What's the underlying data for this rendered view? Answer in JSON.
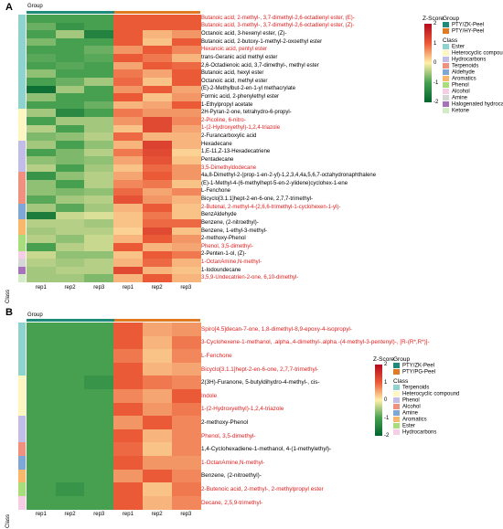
{
  "panelA": {
    "label": "A",
    "group_title": "Group",
    "class_axis": "Class",
    "columns": [
      "rep1",
      "rep2",
      "rep3",
      "rep1",
      "rep2",
      "rep3"
    ],
    "rows": [
      {
        "name": "Butanoic acid, 2-methyl-, 3,7-dimethyl-2,6-octadienyl ester, (E)-",
        "red": true,
        "cls": "Ester",
        "v": [
          -1,
          -1,
          -1,
          1,
          1,
          1
        ]
      },
      {
        "name": "Butanoic acid, 3-methyl-, 3,7-dimethyl-2,6-octadienyl ester, (Z)-",
        "red": true,
        "cls": "Ester",
        "v": [
          -0.8,
          -1.2,
          -1,
          1,
          1,
          1
        ]
      },
      {
        "name": "Octanoic acid, 3-hexenyl ester, (Z)-",
        "red": false,
        "cls": "Ester",
        "v": [
          -1,
          -0.5,
          -1.5,
          1,
          0.4,
          0.6
        ]
      },
      {
        "name": "Butanoic acid, 2-butoxy-1-methyl-2-oxoethyl ester",
        "red": false,
        "cls": "Ester",
        "v": [
          -0.7,
          -1,
          -1,
          1,
          0.3,
          1
        ]
      },
      {
        "name": "Hexanoic acid, pentyl ester",
        "red": true,
        "cls": "Ester",
        "v": [
          -1,
          -1,
          -0.8,
          0.6,
          1,
          0.7
        ]
      },
      {
        "name": "trans-Geranic acid methyl ester",
        "red": false,
        "cls": "Ester",
        "v": [
          -0.9,
          -1,
          -0.9,
          1,
          0.8,
          0.4
        ]
      },
      {
        "name": "2,6-Octadienoic acid, 3,7-dimethyl-, methyl ester",
        "red": false,
        "cls": "Ester",
        "v": [
          -1,
          -0.9,
          -1,
          0.5,
          1,
          0.9
        ]
      },
      {
        "name": "Butanoic acid, hexyl ester",
        "red": false,
        "cls": "Ester",
        "v": [
          -0.6,
          -1,
          -1,
          0.8,
          0.5,
          1
        ]
      },
      {
        "name": "Octanoic acid, methyl ester",
        "red": false,
        "cls": "Ester",
        "v": [
          -1,
          -0.8,
          -0.5,
          0.9,
          0.3,
          1
        ]
      },
      {
        "name": "(E)-2-Methylbut-2-en-1-yl methacrylate",
        "red": false,
        "cls": "Ester",
        "v": [
          -1.8,
          -0.5,
          -1,
          0.6,
          1,
          0.5
        ]
      },
      {
        "name": "Formic acid, 2-phenylethyl ester",
        "red": false,
        "cls": "Ester",
        "v": [
          -0.6,
          -1,
          -1,
          1,
          0.3,
          0.6
        ]
      },
      {
        "name": "1-Ethylpropyl acetate",
        "red": false,
        "cls": "Ester",
        "v": [
          -1,
          -1,
          -0.8,
          0.4,
          0.5,
          1
        ]
      },
      {
        "name": "2H-Pyran-2-one, tetrahydro-6-propyl-",
        "red": false,
        "cls": "Heterocyclic compound",
        "v": [
          -0.5,
          -1.4,
          -1,
          0.8,
          0.6,
          0.6
        ]
      },
      {
        "name": "2-Picoline, 6-nitro-",
        "red": true,
        "cls": "Heterocyclic compound",
        "v": [
          -1,
          -0.5,
          -0.5,
          0.6,
          1.2,
          0.7
        ]
      },
      {
        "name": "1-(2-Hydroxyethyl)-1,2,4-triazole",
        "red": true,
        "cls": "Heterocyclic compound",
        "v": [
          -0.4,
          -1,
          -0.5,
          0.3,
          1.2,
          0.5
        ]
      },
      {
        "name": "2-Furancarboxylic acid",
        "red": false,
        "cls": "Heterocyclic compound",
        "v": [
          -0.7,
          -0.6,
          -0.4,
          0.9,
          0.4,
          0.4
        ]
      },
      {
        "name": "Hexadecane",
        "red": false,
        "cls": "Hydrocarbons",
        "v": [
          -0.5,
          -1,
          -0.6,
          0.4,
          1.3,
          0.4
        ]
      },
      {
        "name": "1,E-11,Z-13-Hexadecatriene",
        "red": false,
        "cls": "Hydrocarbons",
        "v": [
          -1,
          -0.7,
          -0.4,
          0.8,
          1.2,
          0.2
        ]
      },
      {
        "name": "Pentadecane",
        "red": false,
        "cls": "Hydrocarbons",
        "v": [
          -0.6,
          -0.7,
          -0.6,
          0.5,
          1.1,
          0.3
        ]
      },
      {
        "name": "3,5-Dimethyldodecane",
        "red": true,
        "cls": "Hydrocarbons",
        "v": [
          -0.4,
          -1,
          -0.5,
          0.3,
          0.9,
          0.6
        ]
      },
      {
        "name": "4a,8-Dimethyl-2-(prop-1-en-2-yl)-1,2,3,4,4a,5,6,7-octahydronaphthalene",
        "red": false,
        "cls": "Terpenoids",
        "v": [
          -1.2,
          -0.6,
          -0.4,
          0.5,
          1,
          0.6
        ]
      },
      {
        "name": "(E)-1-Methyl-4-(6-methylhept-5-en-2-ylidene)cyclohex-1-ene",
        "red": false,
        "cls": "Terpenoids",
        "v": [
          -0.6,
          -1,
          -0.4,
          0.7,
          0.8,
          0.3
        ]
      },
      {
        "name": "L-Fenchone",
        "red": false,
        "cls": "Terpenoids",
        "v": [
          -0.6,
          -0.7,
          -0.6,
          0.9,
          0.5,
          0.7
        ]
      },
      {
        "name": "Bicyclo[3.1.1]hept-2-en-6-one, 2,7,7-trimethyl-",
        "red": false,
        "cls": "Terpenoids",
        "v": [
          -0.9,
          -0.5,
          -0.4,
          1.1,
          0.6,
          0.4
        ]
      },
      {
        "name": "2-Butenal, 2-methyl-4-(2,6,6-trimethyl-1-cyclohexen-1-yl)-",
        "red": true,
        "cls": "Aldehyde",
        "v": [
          -0.5,
          -0.9,
          -0.5,
          0.4,
          1,
          0.3
        ]
      },
      {
        "name": "BenzAldehyde",
        "red": false,
        "cls": "Aldehyde",
        "v": [
          -1.6,
          -0.3,
          -0.2,
          0.3,
          0.8,
          0.3
        ]
      },
      {
        "name": "Benzene, (2-nitroethyl)-",
        "red": false,
        "cls": "Aromatics",
        "v": [
          -0.4,
          -0.4,
          -0.5,
          0.3,
          0.9,
          0.9
        ]
      },
      {
        "name": "Benzene, 1-ethyl-3-methyl-",
        "red": false,
        "cls": "Aromatics",
        "v": [
          -0.5,
          -0.4,
          -0.4,
          0.2,
          1.2,
          0.3
        ]
      },
      {
        "name": "2-methoxy-Phenol",
        "red": false,
        "cls": "Phenol",
        "v": [
          -0.4,
          -0.6,
          -0.3,
          0.4,
          1,
          0.6
        ]
      },
      {
        "name": "Phenol, 3,5-dimethyl-",
        "red": true,
        "cls": "Phenol",
        "v": [
          -1,
          -0.4,
          -0.3,
          1,
          0.4,
          0.5
        ]
      },
      {
        "name": "2-Penten-1-ol, (Z)-",
        "red": false,
        "cls": "Alcohol",
        "v": [
          -0.3,
          -0.6,
          -0.6,
          0.3,
          1,
          0.8
        ]
      },
      {
        "name": "1-OctanAmine,N-methyl-",
        "red": true,
        "cls": "Amine",
        "v": [
          -0.4,
          -0.5,
          -0.4,
          0.4,
          0.9,
          0.4
        ]
      },
      {
        "name": "1-Iodoundecane",
        "red": false,
        "cls": "Halogenated hydrocarbons",
        "v": [
          -0.5,
          -0.4,
          -0.4,
          1.2,
          0.4,
          0.3
        ]
      },
      {
        "name": "3,5,9-Undecatrien-2-one, 6,10-dimethyl-",
        "red": true,
        "cls": "Ketone",
        "v": [
          -0.5,
          -0.5,
          -0.7,
          0.4,
          1,
          0.4
        ]
      }
    ],
    "legend": {
      "zscore_title": "Z-Score",
      "zticks": [
        "2",
        "1",
        "0",
        "-1",
        "-2"
      ],
      "group_title": "Group",
      "groups": [
        {
          "label": "PTY/ZK-Peel",
          "color": "#1e8a79"
        },
        {
          "label": "PTY/HY-Peel",
          "color": "#e07b24"
        }
      ],
      "class_title": "Class",
      "classes": [
        {
          "label": "Ester",
          "color": "#8fd3cf"
        },
        {
          "label": "Heterocyclic compound",
          "color": "#fdf6c0"
        },
        {
          "label": "Hydrocarbons",
          "color": "#c2bde6"
        },
        {
          "label": "Terpenoids",
          "color": "#f0907f"
        },
        {
          "label": "Aldehyde",
          "color": "#7ea7d6"
        },
        {
          "label": "Aromatics",
          "color": "#f8b76a"
        },
        {
          "label": "Phenol",
          "color": "#a8dd7c"
        },
        {
          "label": "Alcohol",
          "color": "#f5cde4"
        },
        {
          "label": "Amine",
          "color": "#d6d6d6"
        },
        {
          "label": "Halogenated hydrocarbons",
          "color": "#a673b9"
        },
        {
          "label": "Ketone",
          "color": "#d4ecc6"
        }
      ]
    }
  },
  "panelB": {
    "label": "B",
    "group_title": "Group",
    "class_axis": "Class",
    "columns": [
      "rep1",
      "rep2",
      "rep3",
      "rep1",
      "rep2",
      "rep3"
    ],
    "rows": [
      {
        "name": "Spiro[4.5]decan-7-one, 1,8-dimethyl-8,9-epoxy-4-isopropyl-",
        "red": true,
        "cls": "Terpenoids",
        "v": [
          -1,
          -1,
          -1,
          1,
          0.5,
          0.6
        ]
      },
      {
        "name": "3-Cyclohexene-1-methanol, .alpha.,4-dimethyl-.alpha.-(4-methyl-3-pentenyl)-, [R-(R*,R*)]-",
        "red": true,
        "cls": "Terpenoids",
        "v": [
          -1,
          -1,
          -1,
          1,
          0.4,
          0.8
        ]
      },
      {
        "name": "L-Fenchone",
        "red": true,
        "cls": "Terpenoids",
        "v": [
          -1,
          -1,
          -1,
          0.8,
          0.3,
          0.7
        ]
      },
      {
        "name": "Bicyclo[3.1.1]hept-2-en-6-one, 2,7,7-trimethyl-",
        "red": true,
        "cls": "Terpenoids",
        "v": [
          -1,
          -1,
          -1,
          1,
          0.4,
          0.5
        ]
      },
      {
        "name": "2(3H)-Furanone, 5-butyldihydro-4-methyl-, cis-",
        "red": false,
        "cls": "Heterocyclic compound",
        "v": [
          -1,
          -1,
          -1.2,
          1,
          0.8,
          0.7
        ]
      },
      {
        "name": "Indole",
        "red": true,
        "cls": "Heterocyclic compound",
        "v": [
          -1,
          -1,
          -1,
          0.7,
          0.5,
          1
        ]
      },
      {
        "name": "1-(2-Hydroxyethyl)-1,2,4-triazole",
        "red": true,
        "cls": "Heterocyclic compound",
        "v": [
          -1,
          -1,
          -1,
          1,
          0.6,
          0.8
        ]
      },
      {
        "name": "2-methoxy-Phenol",
        "red": false,
        "cls": "Phenol",
        "v": [
          -1,
          -1,
          -1,
          0.6,
          1,
          0.7
        ]
      },
      {
        "name": "Phenol, 3,5-dimethyl-",
        "red": true,
        "cls": "Phenol",
        "v": [
          -1,
          -1,
          -1,
          1,
          0.4,
          0.7
        ]
      },
      {
        "name": "1,4-Cyclohexadiene-1-methanol, 4-(1-methylethyl)-",
        "red": false,
        "cls": "Alcohol",
        "v": [
          -1,
          -1,
          -1,
          0.9,
          0.3,
          0.7
        ]
      },
      {
        "name": "1-OctanAmine,N-methyl-",
        "red": true,
        "cls": "Amine",
        "v": [
          -1,
          -1,
          -1,
          1,
          0.6,
          0.6
        ]
      },
      {
        "name": "Benzene, (2-nitroethyl)-",
        "red": false,
        "cls": "Aromatics",
        "v": [
          -1,
          -1,
          -1,
          0.6,
          1,
          0.7
        ]
      },
      {
        "name": "2-Butenoic acid, 2-methyl-, 2-methylpropyl ester",
        "red": true,
        "cls": "Ester",
        "v": [
          -1,
          -1.2,
          -1,
          1,
          0.3,
          0.8
        ]
      },
      {
        "name": "Decane, 2,5,9-trimethyl-",
        "red": true,
        "cls": "Hydrocarbons",
        "v": [
          -1,
          -1,
          -1,
          1,
          0.4,
          0.7
        ]
      }
    ],
    "legend": {
      "zscore_title": "Z-Score",
      "zticks": [
        "2",
        "1",
        "0",
        "-1",
        "-2"
      ],
      "group_title": "Group",
      "groups": [
        {
          "label": "PTY/ZK-Peel",
          "color": "#1e8a79"
        },
        {
          "label": "PTY/PG-Peel",
          "color": "#e07b24"
        }
      ],
      "class_title": "Class",
      "classes": [
        {
          "label": "Terpenoids",
          "color": "#8fd3cf"
        },
        {
          "label": "Heterocyclic compound",
          "color": "#fdf6c0"
        },
        {
          "label": "Phenol",
          "color": "#c2bde6"
        },
        {
          "label": "Alcohol",
          "color": "#f0907f"
        },
        {
          "label": "Amine",
          "color": "#7ea7d6"
        },
        {
          "label": "Aromatics",
          "color": "#f8b76a"
        },
        {
          "label": "Ester",
          "color": "#a8dd7c"
        },
        {
          "label": "Hydrocarbons",
          "color": "#f5cde4"
        }
      ]
    }
  }
}
